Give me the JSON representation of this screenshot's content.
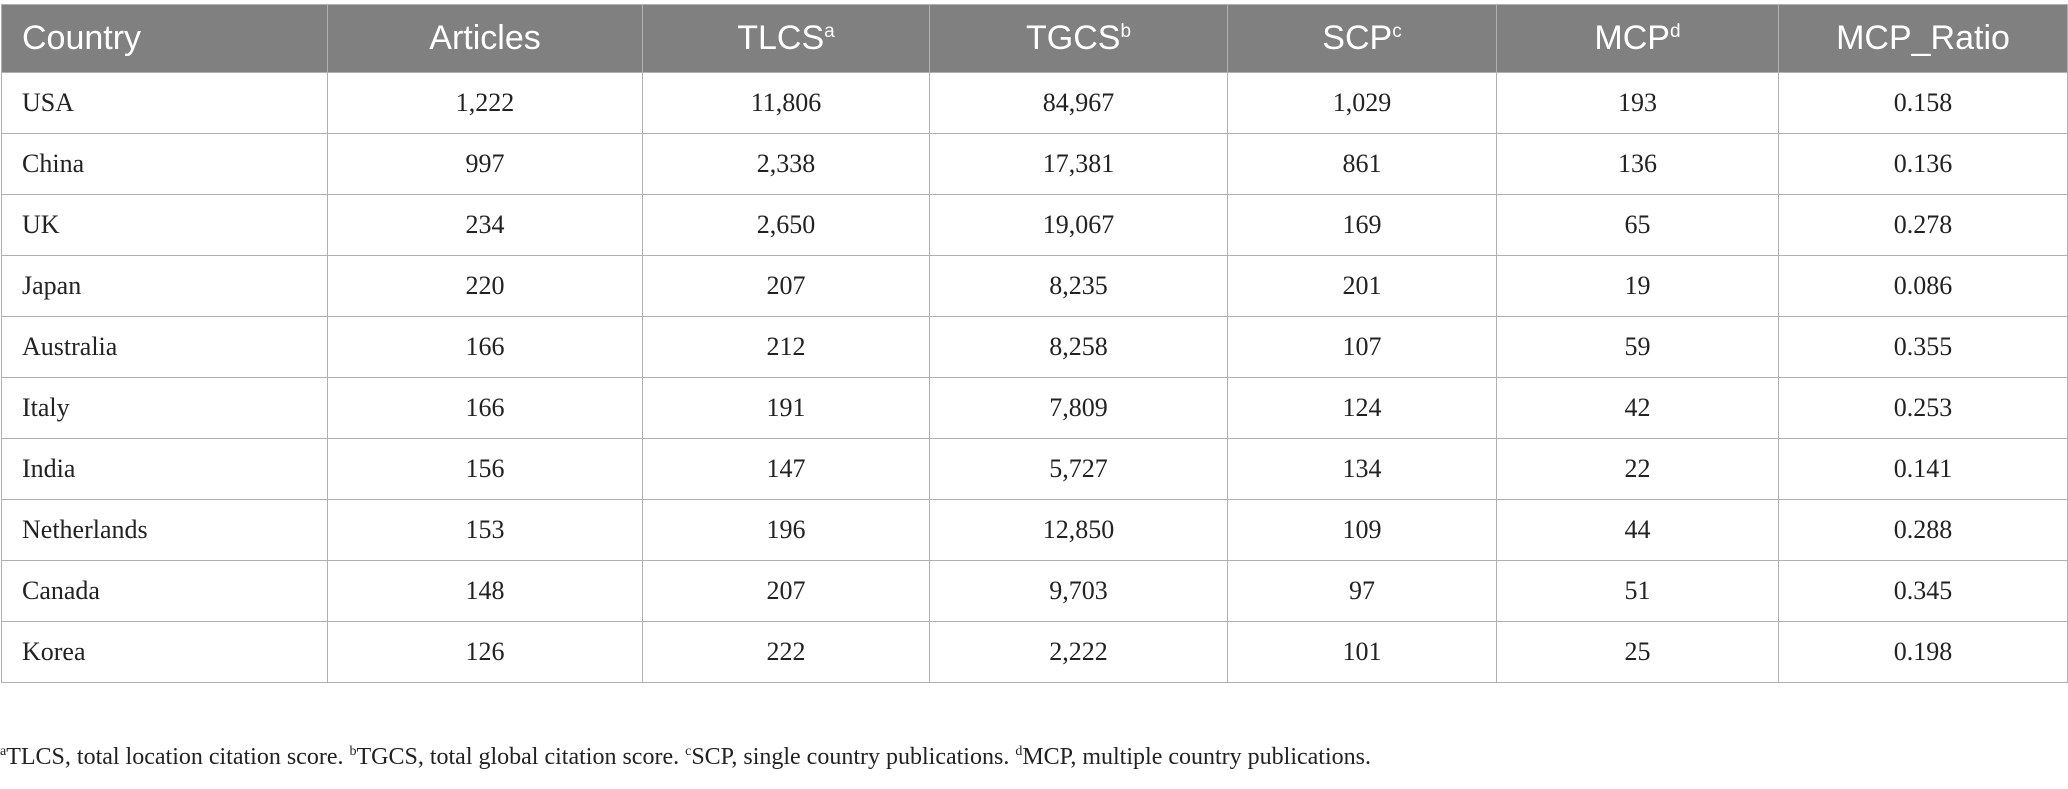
{
  "table": {
    "header": [
      {
        "text": "Country"
      },
      {
        "text": "Articles"
      },
      {
        "text": "TLCS",
        "sup": "a"
      },
      {
        "text": "TGCS",
        "sup": "b"
      },
      {
        "text": "SCP",
        "sup": "c"
      },
      {
        "text": "MCP",
        "sup": "d"
      },
      {
        "text": "MCP_Ratio"
      }
    ],
    "rows": [
      [
        "USA",
        "1,222",
        "11,806",
        "84,967",
        "1,029",
        "193",
        "0.158"
      ],
      [
        "China",
        "997",
        "2,338",
        "17,381",
        "861",
        "136",
        "0.136"
      ],
      [
        "UK",
        "234",
        "2,650",
        "19,067",
        "169",
        "65",
        "0.278"
      ],
      [
        "Japan",
        "220",
        "207",
        "8,235",
        "201",
        "19",
        "0.086"
      ],
      [
        "Australia",
        "166",
        "212",
        "8,258",
        "107",
        "59",
        "0.355"
      ],
      [
        "Italy",
        "166",
        "191",
        "7,809",
        "124",
        "42",
        "0.253"
      ],
      [
        "India",
        "156",
        "147",
        "5,727",
        "134",
        "22",
        "0.141"
      ],
      [
        "Netherlands",
        "153",
        "196",
        "12,850",
        "109",
        "44",
        "0.288"
      ],
      [
        "Canada",
        "148",
        "207",
        "9,703",
        "97",
        "51",
        "0.345"
      ],
      [
        "Korea",
        "126",
        "222",
        "2,222",
        "101",
        "25",
        "0.198"
      ]
    ]
  },
  "footnotes": [
    {
      "mark": "a",
      "text": "TLCS, total location citation score."
    },
    {
      "mark": "b",
      "text": "TGCS, total global citation score."
    },
    {
      "mark": "c",
      "text": "SCP, single country publications."
    },
    {
      "mark": "d",
      "text": "MCP, multiple country publications."
    }
  ]
}
